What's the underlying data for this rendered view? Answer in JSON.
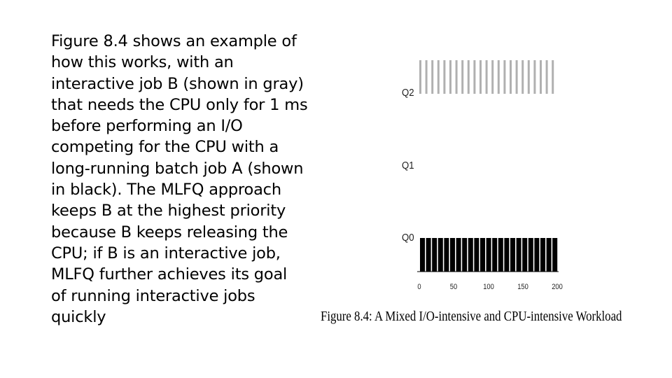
{
  "slide": {
    "body_lines": [
      "Figure 8.4 shows an example of",
      "how this works, with an",
      "interactive job B (shown in gray)",
      "that needs the CPU only for 1 ms",
      "before performing an I/O",
      "competing for the CPU with a",
      "long-running batch job A (shown",
      "in black). The MLFQ approach",
      "keeps B at the highest priority",
      "because B keeps releasing the",
      "CPU; if B is an interactive job,",
      "MLFQ further achieves its goal",
      "of running interactive jobs",
      "quickly"
    ]
  },
  "figure": {
    "queue_labels": [
      "Q2",
      "Q1",
      "Q0"
    ],
    "x_ticks": [
      "0",
      "50",
      "100",
      "150",
      "200"
    ],
    "caption": "Figure 8.4: A Mixed I/O-intensive and CPU-intensive Workload",
    "colors": {
      "job_b": "#b0b0b0",
      "job_a": "#000000"
    }
  }
}
